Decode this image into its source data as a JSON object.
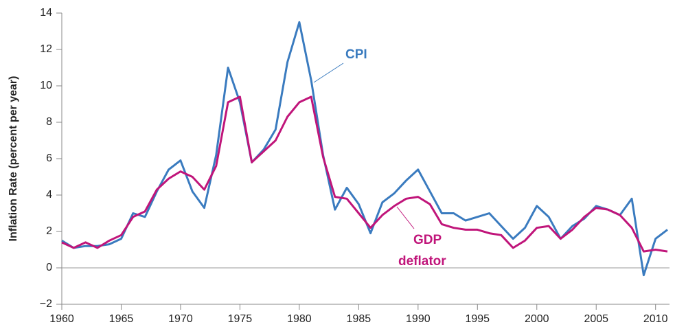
{
  "chart_data": {
    "type": "line",
    "ylabel": "Inflation Rate (percent per year)",
    "x": [
      1960,
      1961,
      1962,
      1963,
      1964,
      1965,
      1966,
      1967,
      1968,
      1969,
      1970,
      1971,
      1972,
      1973,
      1974,
      1975,
      1976,
      1977,
      1978,
      1979,
      1980,
      1981,
      1982,
      1983,
      1984,
      1985,
      1986,
      1987,
      1988,
      1989,
      1990,
      1991,
      1992,
      1993,
      1994,
      1995,
      1996,
      1997,
      1998,
      1999,
      2000,
      2001,
      2002,
      2003,
      2004,
      2005,
      2006,
      2007,
      2008,
      2009,
      2010,
      2011
    ],
    "series": [
      {
        "name": "CPI",
        "color": "#3a7bbf",
        "values": [
          1.5,
          1.1,
          1.2,
          1.2,
          1.3,
          1.6,
          3.0,
          2.8,
          4.2,
          5.4,
          5.9,
          4.2,
          3.3,
          6.2,
          11.0,
          9.1,
          5.8,
          6.5,
          7.6,
          11.3,
          13.5,
          10.3,
          6.2,
          3.2,
          4.4,
          3.5,
          1.9,
          3.6,
          4.1,
          4.8,
          5.4,
          4.2,
          3.0,
          3.0,
          2.6,
          2.8,
          3.0,
          2.3,
          1.6,
          2.2,
          3.4,
          2.8,
          1.6,
          2.3,
          2.7,
          3.4,
          3.2,
          2.9,
          3.8,
          -0.4,
          1.6,
          2.1
        ]
      },
      {
        "name": "GDP deflator",
        "color": "#c0157a",
        "values": [
          1.4,
          1.1,
          1.4,
          1.1,
          1.5,
          1.8,
          2.8,
          3.1,
          4.3,
          4.9,
          5.3,
          5.0,
          4.3,
          5.6,
          9.1,
          9.4,
          5.8,
          6.4,
          7.0,
          8.3,
          9.1,
          9.4,
          6.1,
          3.9,
          3.8,
          3.0,
          2.2,
          2.9,
          3.4,
          3.8,
          3.9,
          3.5,
          2.4,
          2.2,
          2.1,
          2.1,
          1.9,
          1.8,
          1.1,
          1.5,
          2.2,
          2.3,
          1.6,
          2.1,
          2.8,
          3.3,
          3.2,
          2.9,
          2.2,
          0.9,
          1.0,
          0.9
        ]
      }
    ],
    "annotations": [
      {
        "lines": [
          "CPI"
        ]
      },
      {
        "lines": [
          "GDP",
          "deflator"
        ]
      }
    ],
    "xlim": [
      1960,
      2011
    ],
    "xticks": [
      1960,
      1965,
      1970,
      1975,
      1980,
      1985,
      1990,
      1995,
      2000,
      2005,
      2010
    ],
    "ylim": [
      -2,
      14
    ],
    "yticks": [
      {
        "value": -2,
        "label": "−2"
      },
      0,
      2,
      4,
      6,
      8,
      10,
      12,
      14
    ]
  }
}
